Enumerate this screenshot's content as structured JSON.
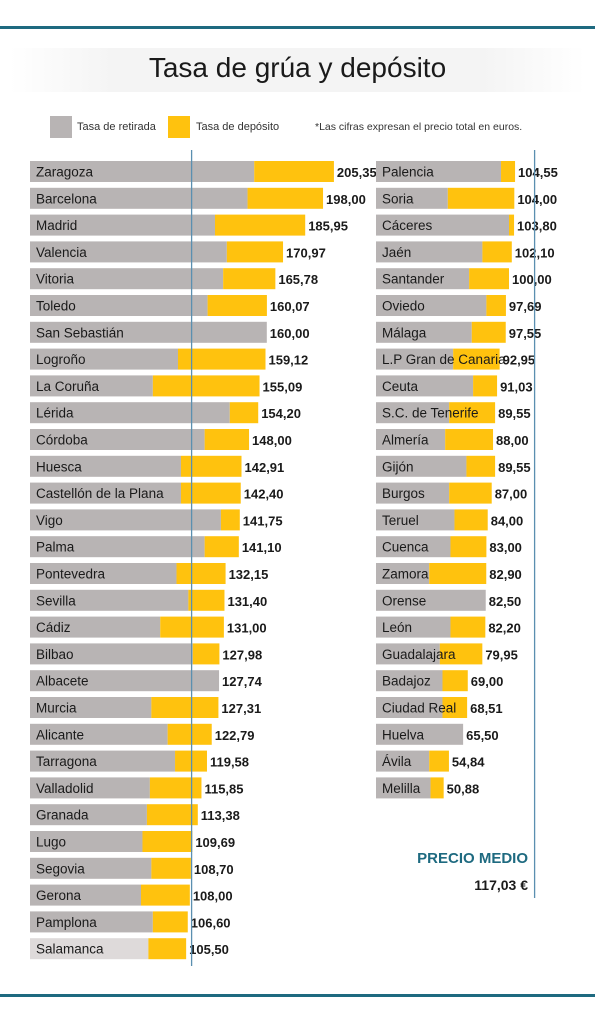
{
  "title": "Tasa de grúa y depósito",
  "legend": {
    "retirada": "Tasa de retirada",
    "deposito": "Tasa de depósito",
    "note": "*Las cifras expresan el precio total  en euros."
  },
  "colors": {
    "retirada": "#b8b4b4",
    "deposito": "#ffc20e",
    "salamanca_retirada": "#dedada",
    "reference_line": "#5b8fb0",
    "rule": "#1e6a80"
  },
  "average": {
    "label": "PRECIO MEDIO",
    "value": "117,03 €",
    "label_color": "#1e6a80"
  },
  "chart_data": [
    {
      "type": "bar",
      "orientation": "horizontal",
      "stacked": true,
      "series": [
        {
          "name": "Tasa de retirada",
          "values": [
            151.5,
            147.0,
            125.0,
            133.0,
            130.5,
            120.0,
            160.0,
            100.0,
            83.0,
            135.0,
            118.0,
            102.0,
            102.0,
            129.0,
            118.0,
            99.0,
            107.0,
            88.0,
            110.0,
            127.74,
            82.0,
            93.0,
            98.0,
            81.0,
            79.0,
            76.0,
            82.0,
            75.0,
            83.0,
            80.0
          ]
        },
        {
          "name": "Tasa de depósito",
          "values": [
            53.85,
            51.0,
            60.95,
            37.97,
            35.28,
            40.07,
            0.0,
            59.12,
            72.09,
            19.2,
            30.0,
            40.91,
            40.4,
            12.75,
            23.1,
            33.15,
            24.4,
            43.0,
            17.98,
            0.0,
            45.31,
            29.79,
            21.58,
            34.85,
            34.38,
            33.69,
            26.7,
            33.0,
            23.6,
            25.5
          ]
        }
      ],
      "categories": [
        "Zaragoza",
        "Barcelona",
        "Madrid",
        "Valencia",
        "Vitoria",
        "Toledo",
        "San Sebastián",
        "Logroño",
        "La Coruña",
        "Lérida",
        "Córdoba",
        "Huesca",
        "Castellón de la Plana",
        "Vigo",
        "Palma",
        "Pontevedra",
        "Sevilla",
        "Cádiz",
        "Bilbao",
        "Albacete",
        "Murcia",
        "Alicante",
        "Tarragona",
        "Valladolid",
        "Granada",
        "Lugo",
        "Segovia",
        "Gerona",
        "Pamplona",
        "Salamanca"
      ],
      "labels": [
        "205,35",
        "198,00",
        "185,95",
        "170,97",
        "165,78",
        "160,07",
        "160,00",
        "159,12",
        "155,09",
        "154,20",
        "148,00",
        "142,91",
        "142,40",
        "141,75",
        "141,10",
        "132,15",
        "131,40",
        "131,00",
        "127,98",
        "127,74",
        "127,31",
        "122,79",
        "119,58",
        "115,85",
        "113,38",
        "109,69",
        "108,70",
        "108,00",
        "106,60",
        "105,50"
      ],
      "reference_value": 117.03,
      "xlim": [
        0,
        205.35
      ]
    },
    {
      "type": "bar",
      "orientation": "horizontal",
      "stacked": true,
      "series": [
        {
          "name": "Tasa de retirada",
          "values": [
            94.0,
            54.0,
            100.0,
            80.0,
            70.0,
            83.0,
            72.0,
            58.0,
            73.0,
            55.0,
            52.0,
            68.0,
            55.0,
            59.0,
            56.0,
            40.0,
            82.5,
            56.0,
            48.0,
            50.0,
            50.0,
            65.5,
            40.0,
            41.0
          ]
        },
        {
          "name": "Tasa de depósito",
          "values": [
            10.55,
            50.0,
            3.8,
            22.1,
            30.0,
            14.69,
            25.55,
            34.95,
            18.03,
            34.55,
            36.0,
            21.55,
            32.0,
            25.0,
            27.0,
            42.9,
            0.0,
            26.2,
            31.95,
            19.0,
            18.51,
            0.0,
            14.84,
            9.88
          ]
        }
      ],
      "categories": [
        "Palencia",
        "Soria",
        "Cáceres",
        "Jaén",
        "Santander",
        "Oviedo",
        "Málaga",
        "L.P Gran de Canaria",
        "Ceuta",
        "S.C. de Tenerife",
        "Almería",
        "Gijón",
        "Burgos",
        "Teruel",
        "Cuenca",
        "Zamora",
        "Orense",
        "León",
        "Guadalajara",
        "Badajoz",
        "Ciudad Real",
        "Huelva",
        "Ávila",
        "Melilla"
      ],
      "labels": [
        "104,55",
        "104,00",
        "103,80",
        "102,10",
        "100,00",
        "97,69",
        "97,55",
        "92,95",
        "91,03",
        "89,55",
        "88,00",
        "89,55",
        "87,00",
        "84,00",
        "83,00",
        "82,90",
        "82,50",
        "82,20",
        "79,95",
        "69,00",
        "68,51",
        "65,50",
        "54,84",
        "50,88"
      ],
      "reference_value": 117.03,
      "xlim": [
        0,
        104.55
      ]
    }
  ]
}
